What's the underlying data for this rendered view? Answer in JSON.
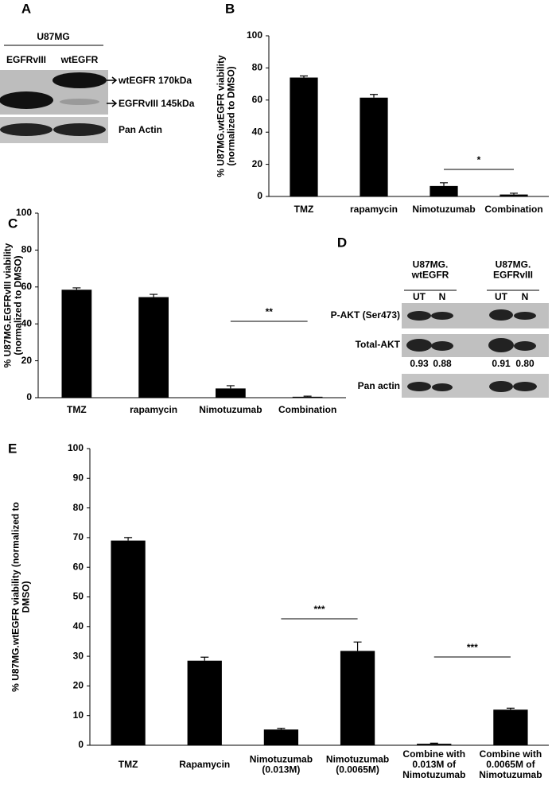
{
  "chart_data": [
    {
      "type": "bar",
      "label": "B",
      "y_label": "% U87MG.wtEGFR viability\n(normalized to DMSO)",
      "categories": [
        "TMZ",
        "rapamycin",
        "Nimotuzumab",
        "Combination"
      ],
      "values": [
        74,
        61.5,
        6.5,
        1.2
      ],
      "errors": [
        1,
        2,
        2,
        0.8
      ],
      "color": "#000000",
      "ylim": [
        0,
        100
      ],
      "yticks": [
        0,
        20,
        40,
        60,
        80,
        100
      ],
      "annotations": [
        "*"
      ]
    },
    {
      "type": "bar",
      "label": "C",
      "y_label": "% U87MG.EGFRvIII viability\n(normalized to DMSO)",
      "categories": [
        "TMZ",
        "rapamycin",
        "Nimotuzumab",
        "Combination"
      ],
      "values": [
        58.5,
        54.5,
        5,
        0.5
      ],
      "errors": [
        1,
        1.5,
        1.5,
        0.3
      ],
      "color": "#000000",
      "ylim": [
        0,
        100
      ],
      "yticks": [
        0,
        20,
        40,
        60,
        80,
        100
      ],
      "annotations": [
        "**"
      ]
    },
    {
      "type": "bar",
      "label": "E",
      "y_label": "% U87MG.wtEGFR viability (normalized to\nDMSO)",
      "categories": [
        "TMZ",
        "Rapamycin",
        "Nimotuzumab\n(0.013M)",
        "Nimotuzumab\n(0.0065M)",
        "Combine with\n0.013M of\nNimotuzumab",
        "Combine with\n0.0065M of\nNimotuzumab"
      ],
      "values": [
        69,
        28.5,
        5.3,
        31.8,
        0.5,
        12
      ],
      "errors": [
        1,
        1.2,
        0.4,
        3,
        0.2,
        0.5
      ],
      "color": "#000000",
      "ylim": [
        0,
        100
      ],
      "yticks": [
        0,
        10,
        20,
        30,
        40,
        50,
        60,
        70,
        80,
        90,
        100
      ],
      "annotations": [
        "***",
        "***"
      ]
    }
  ],
  "blots": {
    "a": {
      "label": "A",
      "title": "U87MG",
      "lanes": [
        "EGFRvIII",
        "wtEGFR"
      ],
      "markers": [
        "wtEGFR 170kDa",
        "EGFRvIII 145kDa",
        "Pan Actin"
      ]
    },
    "d": {
      "label": "D",
      "groups": [
        "U87MG.\nwtEGFR",
        "U87MG.\nEGFRvIII"
      ],
      "lanes": [
        "UT",
        "N",
        "UT",
        "N"
      ],
      "rows": [
        "P-AKT (Ser473)",
        "Total-AKT",
        "Pan actin"
      ],
      "ratios": [
        "0.93",
        "0.88",
        "0.91",
        "0.80"
      ]
    }
  }
}
